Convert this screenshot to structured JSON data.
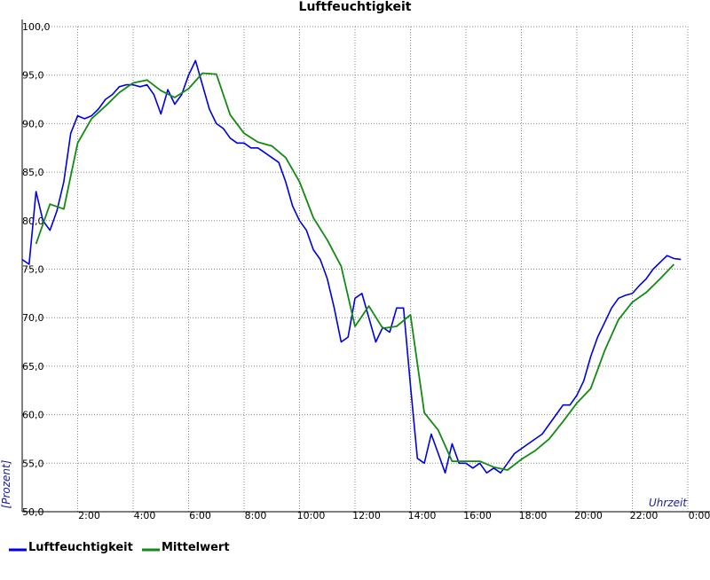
{
  "chart_data": {
    "type": "line",
    "title": "Luftfeuchtigkeit",
    "y_label": "[Prozent]",
    "x_label": "Uhrzeit",
    "xlim": [
      0,
      24
    ],
    "ylim": [
      50,
      100
    ],
    "grid": true,
    "legend": "bottom",
    "xticks": [
      {
        "value": 2,
        "label": "2:00"
      },
      {
        "value": 4,
        "label": "4:00"
      },
      {
        "value": 6,
        "label": "6:00"
      },
      {
        "value": 8,
        "label": "8:00"
      },
      {
        "value": 10,
        "label": "10:00"
      },
      {
        "value": 12,
        "label": "12:00"
      },
      {
        "value": 14,
        "label": "14:00"
      },
      {
        "value": 16,
        "label": "16:00"
      },
      {
        "value": 18,
        "label": "18:00"
      },
      {
        "value": 20,
        "label": "20:00"
      },
      {
        "value": 22,
        "label": "22:00"
      },
      {
        "value": 24,
        "label": "0:00"
      }
    ],
    "yticks": [
      {
        "value": 50,
        "label": "50,0"
      },
      {
        "value": 55,
        "label": "55,0"
      },
      {
        "value": 60,
        "label": "60,0"
      },
      {
        "value": 65,
        "label": "65,0"
      },
      {
        "value": 70,
        "label": "70,0"
      },
      {
        "value": 75,
        "label": "75,0"
      },
      {
        "value": 80,
        "label": "80,0"
      },
      {
        "value": 85,
        "label": "85,0"
      },
      {
        "value": 90,
        "label": "90,0"
      },
      {
        "value": 95,
        "label": "95,0"
      },
      {
        "value": 100,
        "label": "100,0"
      }
    ],
    "series": [
      {
        "name": "Luftfeuchtigkeit",
        "color": "#0000e0",
        "x": [
          0,
          0.25,
          0.5,
          0.75,
          1,
          1.25,
          1.5,
          1.75,
          2,
          2.25,
          2.5,
          2.75,
          3,
          3.25,
          3.5,
          3.75,
          4,
          4.25,
          4.5,
          4.75,
          5,
          5.25,
          5.5,
          5.75,
          6,
          6.25,
          6.5,
          6.75,
          7,
          7.25,
          7.5,
          7.75,
          8,
          8.25,
          8.5,
          8.75,
          9,
          9.25,
          9.5,
          9.75,
          10,
          10.25,
          10.5,
          10.75,
          11,
          11.25,
          11.5,
          11.75,
          12,
          12.25,
          12.5,
          12.75,
          13,
          13.25,
          13.5,
          13.75,
          14,
          14.25,
          14.5,
          14.75,
          15,
          15.25,
          15.5,
          15.75,
          16,
          16.25,
          16.5,
          16.75,
          17,
          17.25,
          17.5,
          17.75,
          18,
          18.25,
          18.5,
          18.75,
          19,
          19.25,
          19.5,
          19.75,
          20,
          20.25,
          20.5,
          20.75,
          21,
          21.25,
          21.5,
          21.75,
          22,
          22.25,
          22.5,
          22.75,
          23,
          23.25,
          23.5,
          23.75
        ],
        "values": [
          76,
          75.5,
          83,
          80,
          79,
          81,
          84,
          89,
          90.8,
          90.5,
          90.8,
          91.5,
          92.5,
          93,
          93.8,
          94,
          94,
          93.8,
          94,
          93,
          91,
          93.5,
          92,
          93,
          95,
          96.5,
          94,
          91.5,
          90,
          89.5,
          88.5,
          88,
          88,
          87.5,
          87.5,
          87,
          86.5,
          86,
          84,
          81.5,
          80,
          79,
          77,
          76,
          74,
          71,
          67.5,
          68,
          72,
          72.5,
          70,
          67.5,
          69,
          68.5,
          71,
          71,
          63,
          55.5,
          55,
          58,
          56,
          54,
          57,
          55,
          55,
          54.5,
          55,
          54,
          54.5,
          54,
          55,
          56,
          56.5,
          57,
          57.5,
          58,
          59,
          60,
          61,
          61,
          62,
          63.5,
          66,
          68,
          69.5,
          71,
          72,
          72.3,
          72.5,
          73.3,
          74,
          75,
          75.7,
          76.4,
          76.1,
          76
        ]
      },
      {
        "name": "Mittelwert",
        "color": "#138a13",
        "x": [
          0.5,
          1,
          1.5,
          2,
          2.5,
          3,
          3.5,
          4,
          4.5,
          5,
          5.5,
          6,
          6.5,
          7,
          7.5,
          8,
          8.5,
          9,
          9.5,
          10,
          10.5,
          11,
          11.5,
          12,
          12.5,
          13,
          13.5,
          14,
          14.5,
          15,
          15.5,
          16,
          16.5,
          17,
          17.5,
          18,
          18.5,
          19,
          19.5,
          20,
          20.5,
          21,
          21.5,
          22,
          22.5,
          23,
          23.5
        ],
        "values": [
          77.6,
          81.7,
          81.2,
          88,
          90.5,
          91.8,
          93.2,
          94.2,
          94.5,
          93.4,
          92.7,
          93.6,
          95.2,
          95.1,
          90.9,
          89,
          88.1,
          87.7,
          86.5,
          84,
          80.3,
          78,
          75.3,
          69.1,
          71.2,
          68.9,
          69.1,
          70.3,
          60.2,
          58.4,
          55.2,
          55.2,
          55.2,
          54.6,
          54.3,
          55.4,
          56.3,
          57.5,
          59.3,
          61.2,
          62.7,
          66.6,
          69.8,
          71.6,
          72.6,
          74,
          75.5
        ]
      }
    ]
  }
}
